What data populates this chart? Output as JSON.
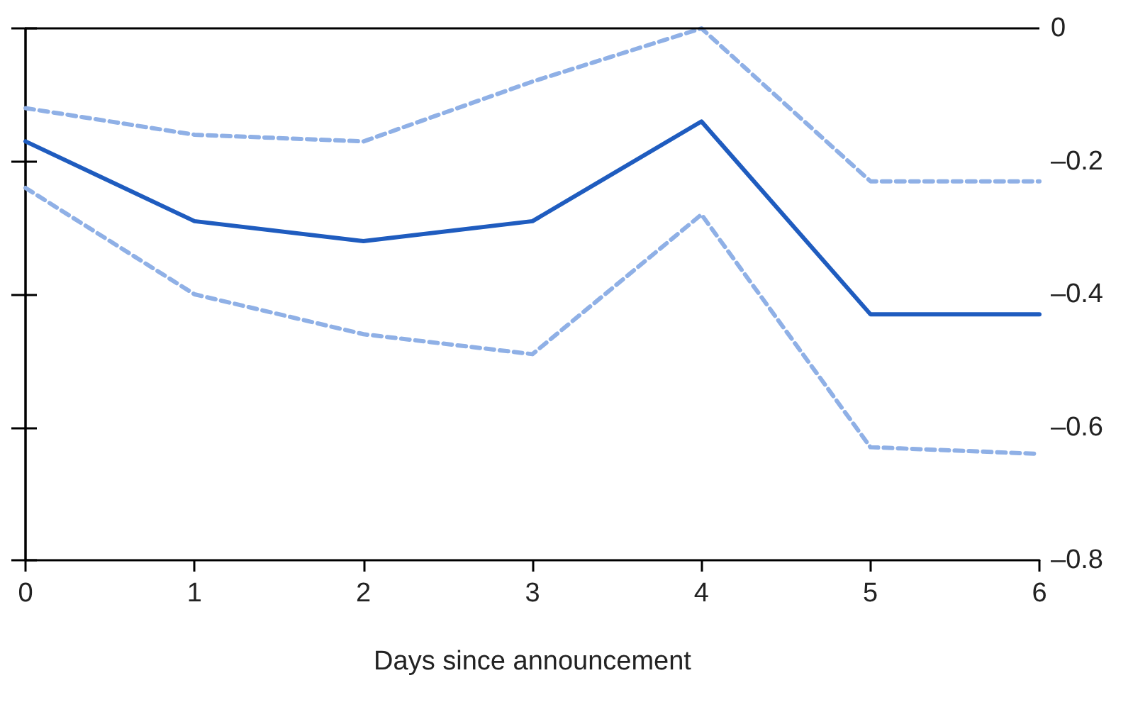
{
  "chart_data": {
    "type": "line",
    "xlabel": "Days since announcement",
    "x": [
      0,
      1,
      2,
      3,
      4,
      5,
      6
    ],
    "xlim": [
      0,
      6
    ],
    "xticks": [
      0,
      1,
      2,
      3,
      4,
      5,
      6
    ],
    "ylim": [
      -0.8,
      0
    ],
    "yticks": [
      0,
      {
        "value": -0.2,
        "label": "–0.2"
      },
      {
        "value": -0.4,
        "label": "–0.4"
      },
      {
        "value": -0.6,
        "label": "–0.6"
      },
      {
        "value": -0.8,
        "label": "–0.8"
      }
    ],
    "series": [
      {
        "color": "#8fb0e6",
        "line_style": "dashed",
        "values": [
          -0.12,
          -0.16,
          -0.17,
          -0.08,
          0.0,
          -0.23,
          -0.23
        ]
      },
      {
        "color": "#8fb0e6",
        "line_style": "dashed",
        "values": [
          -0.24,
          -0.4,
          -0.46,
          -0.49,
          -0.28,
          -0.63,
          -0.64
        ]
      },
      {
        "color": "#1f5cbf",
        "line_style": "solid",
        "values": [
          -0.17,
          -0.29,
          -0.32,
          -0.29,
          -0.14,
          -0.43,
          -0.43
        ]
      }
    ],
    "ref_lines": [
      {
        "axis": "y",
        "value": 0,
        "color": "#000000"
      }
    ],
    "grid": false,
    "marker": "none"
  }
}
